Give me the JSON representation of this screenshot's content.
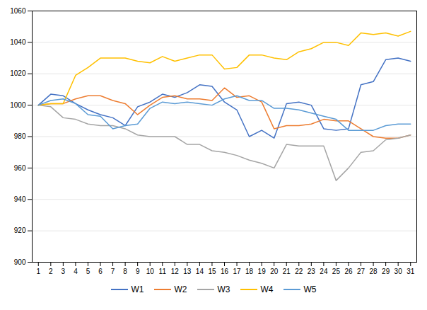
{
  "chart_data": {
    "type": "line",
    "x": [
      1,
      2,
      3,
      4,
      5,
      6,
      7,
      8,
      9,
      10,
      11,
      12,
      13,
      14,
      15,
      16,
      17,
      18,
      19,
      20,
      21,
      22,
      23,
      24,
      25,
      26,
      27,
      28,
      29,
      30,
      31
    ],
    "series": [
      {
        "name": "W1",
        "color": "#4472c4",
        "values": [
          1000,
          1007,
          1006,
          1001,
          997,
          994,
          992,
          987,
          999,
          1002,
          1007,
          1005,
          1008,
          1013,
          1012,
          1002,
          997,
          980,
          984,
          979,
          1001,
          1002,
          1000,
          985,
          984,
          985,
          1013,
          1015,
          1029,
          1030,
          1028
        ]
      },
      {
        "name": "W2",
        "color": "#ed7d31",
        "values": [
          1000,
          1001,
          1001,
          1004,
          1006,
          1006,
          1003,
          1001,
          994,
          1000,
          1005,
          1006,
          1004,
          1004,
          1003,
          1011,
          1005,
          1006,
          1002,
          985,
          987,
          987,
          988,
          991,
          990,
          990,
          985,
          980,
          979,
          979,
          981
        ]
      },
      {
        "name": "W3",
        "color": "#a5a5a5",
        "values": [
          1000,
          999,
          992,
          991,
          988,
          987,
          987,
          985,
          981,
          980,
          980,
          980,
          975,
          975,
          971,
          970,
          968,
          965,
          963,
          960,
          975,
          974,
          974,
          974,
          952,
          960,
          970,
          971,
          978,
          979,
          981
        ]
      },
      {
        "name": "W4",
        "color": "#ffc000",
        "values": [
          1000,
          1001,
          1001,
          1019,
          1024,
          1030,
          1030,
          1030,
          1028,
          1027,
          1031,
          1028,
          1030,
          1032,
          1032,
          1023,
          1024,
          1032,
          1032,
          1030,
          1029,
          1034,
          1036,
          1040,
          1040,
          1038,
          1046,
          1045,
          1046,
          1044,
          1047
        ]
      },
      {
        "name": "W5",
        "color": "#5b9bd5",
        "values": [
          1000,
          1003,
          1004,
          1001,
          994,
          993,
          985,
          987,
          988,
          998,
          1002,
          1001,
          1002,
          1001,
          1000,
          1004,
          1006,
          1003,
          1003,
          998,
          998,
          997,
          995,
          993,
          991,
          984,
          984,
          984,
          987,
          988,
          988
        ]
      }
    ],
    "xlim": [
      0.5,
      31.5
    ],
    "xticks": [
      1,
      2,
      3,
      4,
      5,
      6,
      7,
      8,
      9,
      10,
      11,
      12,
      13,
      14,
      15,
      16,
      17,
      18,
      19,
      20,
      21,
      22,
      23,
      24,
      25,
      26,
      27,
      28,
      29,
      30,
      31
    ],
    "ylim": [
      900,
      1060
    ],
    "yticks": [
      900,
      920,
      940,
      960,
      980,
      1000,
      1020,
      1040,
      1060
    ],
    "grid": true,
    "legend": "bottom"
  }
}
